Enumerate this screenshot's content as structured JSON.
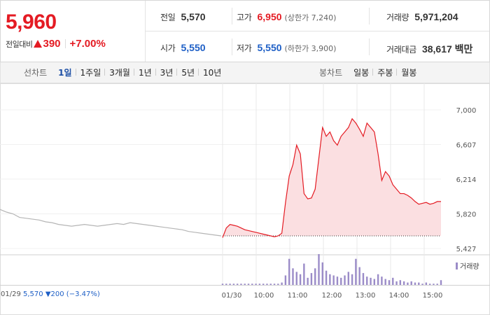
{
  "quote": {
    "current_price": "5,960",
    "change_label": "전일대비",
    "change_amount": "390",
    "change_rate": "+7.00%",
    "prev_close_label": "전일",
    "prev_close": "5,570",
    "high_label": "고가",
    "high": "6,950",
    "upper_limit": "(상한가 7,240)",
    "volume_label": "거래량",
    "volume": "5,971,204",
    "open_label": "시가",
    "open": "5,550",
    "low_label": "저가",
    "low": "5,550",
    "lower_limit": "(하한가 3,900)",
    "amount_label": "거래대금",
    "amount": "38,617 백만"
  },
  "period_tabs": {
    "title": "선차트",
    "items": [
      "1일",
      "1주일",
      "3개월",
      "1년",
      "3년",
      "5년",
      "10년"
    ],
    "active": "1일"
  },
  "candle_tabs": {
    "title": "봉차트",
    "items": [
      "일봉",
      "주봉",
      "월봉"
    ]
  },
  "colors": {
    "up": "#e41b23",
    "down": "#1e5fc6",
    "prev_day_line": "#b5b5b5",
    "area_fill": "#fbdfe1",
    "volume_bar": "#9b8cc8"
  },
  "footer": {
    "date": "01/29",
    "close": "5,570",
    "change": "▼200 (−3.47%)"
  },
  "volume_legend": "거래량",
  "chart_data": {
    "type": "line",
    "y_ticks": [
      "7,000",
      "6,607",
      "6,214",
      "5,820",
      "5,427"
    ],
    "ylim": [
      5427,
      7000
    ],
    "x_labels": [
      "01/30",
      "10:00",
      "11:00",
      "12:00",
      "13:00",
      "14:00",
      "15:00"
    ],
    "prev_close": 5570,
    "series": [
      {
        "values_prev_day": [
          5870,
          5840,
          5820,
          5780,
          5770,
          5760,
          5750,
          5730,
          5720,
          5700,
          5690,
          5680,
          5690,
          5700,
          5690,
          5680,
          5690,
          5700,
          5710,
          5700,
          5720,
          5710,
          5700,
          5690,
          5680,
          5670,
          5660,
          5650,
          5640,
          5620,
          5610,
          5600,
          5590,
          5580,
          5570
        ]
      },
      {
        "values_today": [
          5550,
          5660,
          5700,
          5690,
          5680,
          5660,
          5640,
          5630,
          5620,
          5610,
          5600,
          5590,
          5580,
          5570,
          5560,
          5570,
          5600,
          5950,
          6250,
          6380,
          6600,
          6500,
          6050,
          5990,
          6000,
          6100,
          6450,
          6800,
          6700,
          6750,
          6650,
          6600,
          6700,
          6750,
          6800,
          6900,
          6850,
          6780,
          6700,
          6850,
          6800,
          6750,
          6500,
          6200,
          6300,
          6250,
          6150,
          6100,
          6050,
          6050,
          6030,
          6000,
          5960,
          5930,
          5940,
          5950,
          5930,
          5940,
          5960,
          5960
        ]
      }
    ],
    "volume": [
      1,
      1,
      1,
      1,
      1,
      1,
      1,
      1,
      1,
      1,
      1,
      1,
      1,
      1,
      1,
      1,
      2,
      8,
      22,
      14,
      11,
      9,
      18,
      6,
      10,
      14,
      26,
      19,
      12,
      9,
      8,
      7,
      6,
      8,
      11,
      9,
      22,
      15,
      10,
      7,
      6,
      5,
      9,
      7,
      5,
      4,
      6,
      3,
      4,
      3,
      2,
      3,
      2,
      2,
      1,
      2,
      1,
      1,
      1,
      4
    ]
  }
}
